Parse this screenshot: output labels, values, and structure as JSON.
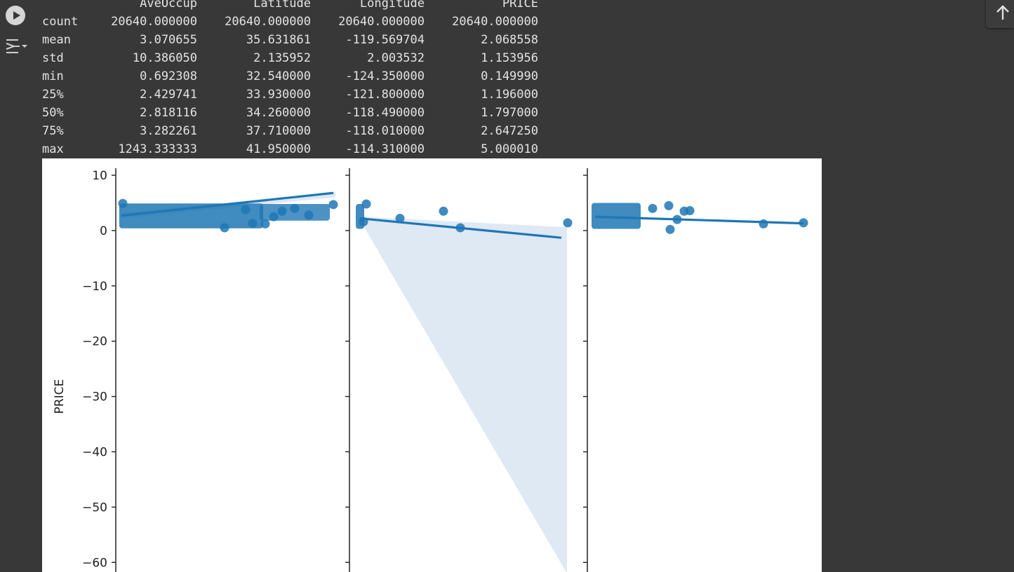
{
  "cell": {
    "run_icon": "play-circle-icon",
    "output_icon": "output-toggle-icon",
    "scroll_icon": "arrow-up-icon"
  },
  "describe_table": {
    "columns": [
      "AveOccup",
      "Latitude",
      "Longitude",
      "PRICE"
    ],
    "rows": [
      {
        "label": "count",
        "values": [
          "20640.000000",
          "20640.000000",
          "20640.000000",
          "20640.000000"
        ]
      },
      {
        "label": "mean",
        "values": [
          "3.070655",
          "35.631861",
          "-119.569704",
          "2.068558"
        ]
      },
      {
        "label": "std",
        "values": [
          "10.386050",
          "2.135952",
          "2.003532",
          "1.153956"
        ]
      },
      {
        "label": "min",
        "values": [
          "0.692308",
          "32.540000",
          "-124.350000",
          "0.149990"
        ]
      },
      {
        "label": "25%",
        "values": [
          "2.429741",
          "33.930000",
          "-121.800000",
          "1.196000"
        ]
      },
      {
        "label": "50%",
        "values": [
          "2.818116",
          "34.260000",
          "-118.490000",
          "1.797000"
        ]
      },
      {
        "label": "75%",
        "values": [
          "3.282261",
          "37.710000",
          "-118.010000",
          "2.647250"
        ]
      },
      {
        "label": "max",
        "values": [
          "1243.333333",
          "41.950000",
          "-114.310000",
          "5.000010"
        ]
      }
    ]
  },
  "chart_data": {
    "type": "scatter",
    "ylabel": "PRICE",
    "ylim": [
      -62,
      10
    ],
    "yticks": [
      10,
      0,
      -10,
      -20,
      -30,
      -40,
      -50,
      -60
    ],
    "ytick_labels": [
      "10",
      "0",
      "−10",
      "−20",
      "−30",
      "−40",
      "−50",
      "−60"
    ],
    "color": "#1f77b4",
    "ci_color": "#dce8f3",
    "panels": [
      {
        "points_y": [
          4.9,
          3.8,
          1.3,
          1.2,
          0.5,
          4.7,
          2.5,
          3.5,
          4.0,
          2.8
        ],
        "fit_y": [
          2.7,
          6.8
        ],
        "ci_upper": [
          3.2,
          7.0
        ],
        "ci_lower": [
          2.2,
          6.0
        ]
      },
      {
        "points_y": [
          4.8,
          2.2,
          3.5,
          0.5,
          1.4,
          1.6
        ],
        "fit_y": [
          2.2,
          -1.3
        ],
        "ci_upper": [
          2.5,
          0.6
        ],
        "ci_lower": [
          1.9,
          -62
        ]
      },
      {
        "points_y": [
          4.5,
          0.2,
          4.0,
          3.5,
          3.6,
          2.0,
          1.2,
          1.4
        ],
        "fit_y": [
          2.5,
          1.3
        ],
        "ci_upper": [
          2.7,
          1.5
        ],
        "ci_lower": [
          2.3,
          1.1
        ]
      }
    ]
  }
}
